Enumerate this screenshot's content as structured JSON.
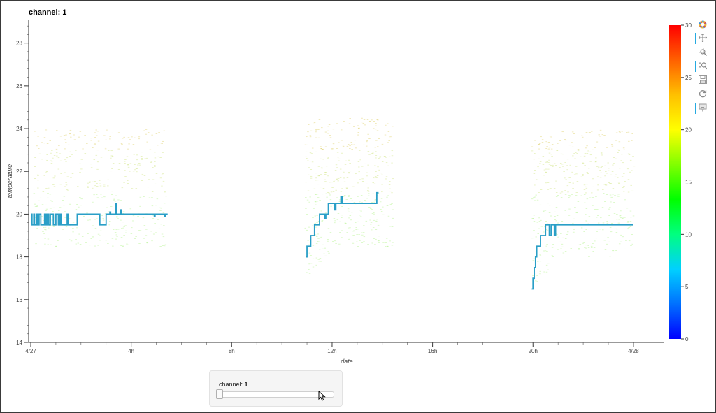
{
  "title": "channel: 1",
  "slider": {
    "label": "channel: ",
    "value": "1"
  },
  "toolbar": {
    "tools": [
      {
        "name": "bokeh-logo-icon",
        "active": false
      },
      {
        "name": "pan-icon",
        "active": true
      },
      {
        "name": "box-zoom-icon",
        "active": false
      },
      {
        "name": "wheel-zoom-icon",
        "active": true
      },
      {
        "name": "save-icon",
        "active": false
      },
      {
        "name": "reset-icon",
        "active": false
      },
      {
        "name": "hover-icon",
        "active": true
      }
    ]
  },
  "chart_data": {
    "type": "line",
    "xlabel": "date",
    "ylabel": "temperature",
    "xlim": [
      0,
      25.2
    ],
    "ylim": [
      14,
      29.1
    ],
    "x_ticks": [
      {
        "v": 0,
        "label": "4/27"
      },
      {
        "v": 4,
        "label": "4h"
      },
      {
        "v": 8,
        "label": "8h"
      },
      {
        "v": 12,
        "label": "12h"
      },
      {
        "v": 16,
        "label": "16h"
      },
      {
        "v": 20,
        "label": "20h"
      },
      {
        "v": 24,
        "label": "4/28"
      }
    ],
    "y_ticks": [
      14,
      16,
      18,
      20,
      22,
      24,
      26,
      28
    ],
    "series": [
      {
        "color": "#2a9fc7",
        "segments": [
          [
            [
              0.02,
              20.0
            ],
            [
              0.05,
              19.5
            ],
            [
              0.12,
              20.0
            ],
            [
              0.15,
              19.5
            ],
            [
              0.22,
              20.0
            ],
            [
              0.27,
              19.5
            ],
            [
              0.33,
              20.0
            ],
            [
              0.36,
              20.0
            ],
            [
              0.4,
              19.5
            ],
            [
              0.5,
              19.5
            ],
            [
              0.55,
              20.0
            ],
            [
              0.6,
              19.5
            ],
            [
              0.65,
              20.0
            ],
            [
              0.72,
              19.5
            ],
            [
              0.78,
              20.0
            ],
            [
              0.85,
              20.0
            ],
            [
              0.9,
              19.5
            ],
            [
              0.95,
              19.5
            ],
            [
              1.0,
              20.0
            ],
            [
              1.1,
              19.5
            ],
            [
              1.15,
              20.0
            ],
            [
              1.2,
              19.5
            ],
            [
              1.4,
              19.5
            ],
            [
              1.45,
              20.0
            ],
            [
              1.5,
              19.5
            ],
            [
              1.8,
              19.5
            ],
            [
              1.85,
              20.0
            ],
            [
              2.7,
              20.0
            ],
            [
              2.75,
              19.5
            ],
            [
              2.95,
              19.5
            ],
            [
              3.0,
              20.0
            ],
            [
              3.1,
              20.0
            ],
            [
              3.15,
              20.1
            ],
            [
              3.18,
              20.0
            ],
            [
              3.35,
              20.0
            ],
            [
              3.38,
              20.5
            ],
            [
              3.42,
              20.0
            ],
            [
              3.55,
              20.0
            ],
            [
              3.58,
              20.2
            ],
            [
              3.62,
              20.0
            ],
            [
              4.9,
              20.0
            ],
            [
              4.92,
              19.9
            ],
            [
              4.95,
              20.0
            ],
            [
              5.3,
              20.0
            ],
            [
              5.33,
              19.9
            ],
            [
              5.36,
              20.0
            ],
            [
              5.45,
              20.0
            ]
          ],
          [
            [
              10.95,
              18.0
            ],
            [
              11.0,
              18.5
            ],
            [
              11.1,
              18.5
            ],
            [
              11.15,
              19.0
            ],
            [
              11.25,
              19.0
            ],
            [
              11.3,
              19.5
            ],
            [
              11.45,
              19.5
            ],
            [
              11.5,
              20.0
            ],
            [
              11.6,
              20.0
            ],
            [
              11.65,
              20.0
            ],
            [
              11.7,
              19.8
            ],
            [
              11.75,
              20.0
            ],
            [
              11.8,
              20.0
            ],
            [
              11.85,
              20.5
            ],
            [
              12.05,
              20.5
            ],
            [
              12.1,
              20.2
            ],
            [
              12.15,
              20.5
            ],
            [
              12.3,
              20.5
            ],
            [
              12.35,
              20.8
            ],
            [
              12.4,
              20.5
            ],
            [
              12.55,
              20.5
            ],
            [
              12.6,
              20.5
            ],
            [
              13.75,
              20.5
            ],
            [
              13.78,
              21.0
            ],
            [
              13.85,
              21.0
            ]
          ],
          [
            [
              19.95,
              16.5
            ],
            [
              20.0,
              17.0
            ],
            [
              20.05,
              17.5
            ],
            [
              20.1,
              18.0
            ],
            [
              20.15,
              18.5
            ],
            [
              20.25,
              18.5
            ],
            [
              20.3,
              19.0
            ],
            [
              20.45,
              19.0
            ],
            [
              20.5,
              19.5
            ],
            [
              20.6,
              19.5
            ],
            [
              20.65,
              19.0
            ],
            [
              20.72,
              19.5
            ],
            [
              20.8,
              19.5
            ],
            [
              20.85,
              19.0
            ],
            [
              20.9,
              19.5
            ],
            [
              21.0,
              19.5
            ],
            [
              24.0,
              19.5
            ]
          ]
        ]
      }
    ],
    "colorbar": {
      "ticks": [
        0,
        5,
        10,
        15,
        20,
        25,
        30
      ],
      "range": [
        0,
        30
      ],
      "palette": [
        "#0000ff",
        "#0070ff",
        "#00d0ff",
        "#00ff80",
        "#00ff00",
        "#80ff00",
        "#ffff00",
        "#ffc000",
        "#ff6000",
        "#ff0000"
      ]
    }
  }
}
